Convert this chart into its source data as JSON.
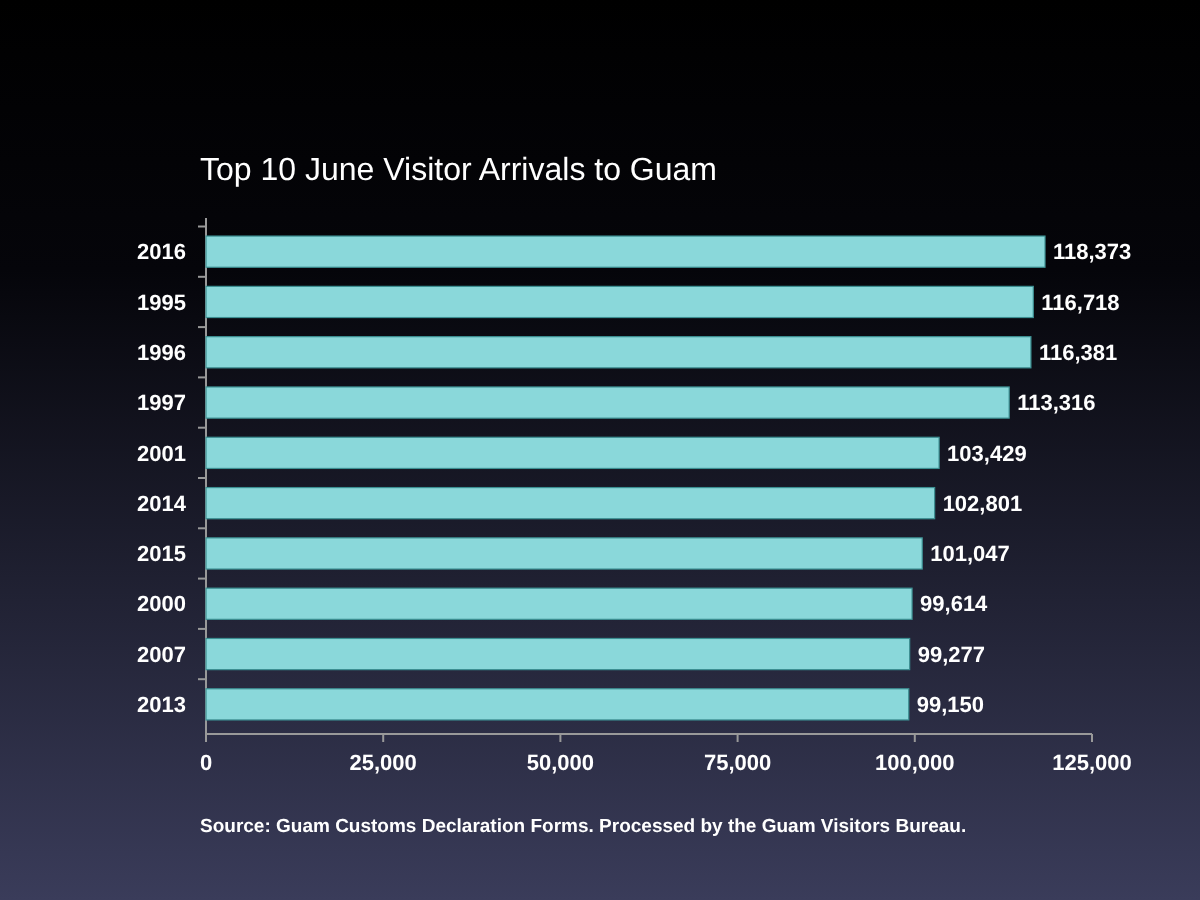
{
  "chart_data": {
    "type": "bar",
    "orientation": "horizontal",
    "title": "Top 10 June Visitor Arrivals to Guam",
    "categories": [
      "2016",
      "1995",
      "1996",
      "1997",
      "2001",
      "2014",
      "2015",
      "2000",
      "2007",
      "2013"
    ],
    "values": [
      118373,
      116718,
      116381,
      113316,
      103429,
      102801,
      101047,
      99614,
      99277,
      99150
    ],
    "value_labels": [
      "118,373",
      "116,718",
      "116,381",
      "113,316",
      "103,429",
      "102,801",
      "101,047",
      "99,614",
      "99,277",
      "99,150"
    ],
    "color": "#8ad8da",
    "xlim": [
      0,
      125000
    ],
    "xticks": [
      0,
      {
        "value": 25000,
        "label": "25,000"
      },
      {
        "value": 50000,
        "label": "50,000"
      },
      {
        "value": 75000,
        "label": "75,000"
      },
      {
        "value": 100000,
        "label": "100,000"
      },
      {
        "value": 125000,
        "label": "125,000"
      }
    ],
    "annotations": [
      "Source: Guam Customs Declaration Forms. Processed by the Guam Visitors Bureau."
    ]
  }
}
